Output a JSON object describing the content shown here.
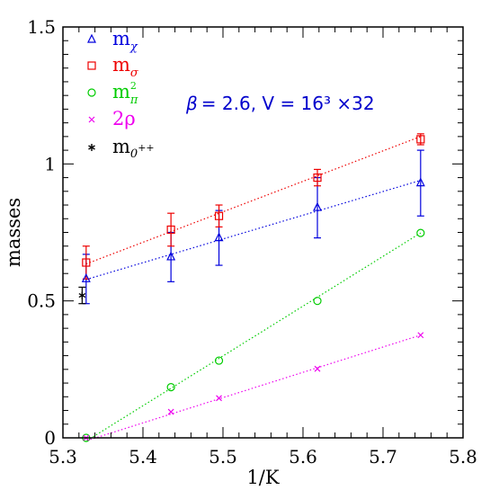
{
  "chart_data": {
    "type": "scatter",
    "xlabel": "1/K",
    "ylabel": "masses",
    "xlim": [
      5.3,
      5.8
    ],
    "ylim": [
      0,
      1.5
    ],
    "x_ticks": [
      5.3,
      5.4,
      5.5,
      5.6,
      5.7,
      5.8
    ],
    "x_tick_labels": [
      "5.3",
      "5.4",
      "5.5",
      "5.6",
      "5.7",
      "5.8"
    ],
    "y_ticks": [
      0,
      0.5,
      1,
      1.5
    ],
    "y_tick_labels": [
      "0",
      "0.5",
      "1",
      "1.5"
    ],
    "grid": false,
    "legend_position": "top-left",
    "annotation": {
      "beta_symbol": "β",
      "text": "= 2.6, V = 16³ ×32",
      "color": "#0000cc"
    },
    "series": [
      {
        "legend_base": "m",
        "legend_sub": "χ",
        "legend_sup": "",
        "marker": "triangle",
        "color": "#0000dd",
        "x": [
          5.329,
          5.435,
          5.495,
          5.618,
          5.747
        ],
        "y": [
          0.58,
          0.66,
          0.73,
          0.84,
          0.93
        ],
        "err": [
          0.09,
          0.09,
          0.1,
          0.11,
          0.12
        ],
        "fit": [
          [
            5.329,
            0.578
          ],
          [
            5.747,
            0.94
          ]
        ]
      },
      {
        "legend_base": "m",
        "legend_sub": "σ",
        "legend_sup": "",
        "marker": "square",
        "color": "#ee0000",
        "x": [
          5.329,
          5.435,
          5.495,
          5.618,
          5.747
        ],
        "y": [
          0.64,
          0.76,
          0.81,
          0.95,
          1.09
        ],
        "err": [
          0.06,
          0.06,
          0.04,
          0.03,
          0.02
        ],
        "fit": [
          [
            5.329,
            0.635
          ],
          [
            5.747,
            1.1
          ]
        ]
      },
      {
        "legend_base": "m",
        "legend_sub": "π",
        "legend_sup": "2",
        "marker": "circle",
        "color": "#00cc00",
        "x": [
          5.329,
          5.435,
          5.495,
          5.618,
          5.747
        ],
        "y": [
          0.0,
          0.185,
          0.282,
          0.5,
          0.748
        ],
        "err": [
          0,
          0,
          0,
          0,
          0
        ],
        "fit": [
          [
            5.33,
            -0.01
          ],
          [
            5.747,
            0.748
          ]
        ]
      },
      {
        "legend_base": "2ρ",
        "legend_sub": "",
        "legend_sup": "",
        "marker": "cross",
        "color": "#ee00ee",
        "x": [
          5.329,
          5.435,
          5.495,
          5.618,
          5.747
        ],
        "y": [
          0.0,
          0.095,
          0.145,
          0.252,
          0.375
        ],
        "err": [
          0,
          0,
          0,
          0,
          0
        ],
        "fit": [
          [
            5.33,
            -0.01
          ],
          [
            5.747,
            0.375
          ]
        ]
      },
      {
        "legend_base": "m",
        "legend_sub": "0",
        "legend_sup": "++",
        "marker": "asterisk",
        "color": "#000000",
        "x": [
          5.324
        ],
        "y": [
          0.52
        ],
        "err": [
          0.03
        ],
        "fit": null
      }
    ]
  }
}
